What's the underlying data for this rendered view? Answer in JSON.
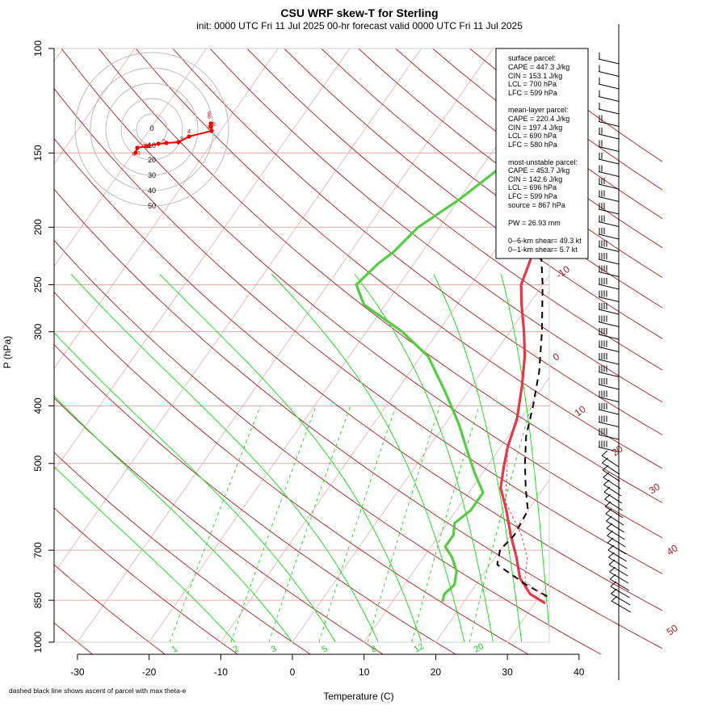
{
  "chart_data": {
    "type": "line",
    "title": "CSU WRF skew-T for Sterling",
    "subtitle": "init: 0000 UTC Fri 11 Jul 2025    00-hr forecast valid 0000 UTC Fri 11 Jul 2025",
    "xlabel": "Temperature (C)",
    "ylabel": "P (hPa)",
    "footnote": "dashed black line shows ascent of parcel with max theta-e",
    "x_ticks": [
      -30,
      -20,
      -10,
      0,
      10,
      20,
      30,
      40
    ],
    "y_ticks": [
      100,
      150,
      200,
      250,
      300,
      400,
      500,
      700,
      850,
      1000
    ],
    "xlim": [
      -33,
      45
    ],
    "ylim": [
      1000,
      100
    ],
    "skew_per_log10p": 58,
    "y_log": true,
    "dry_adiabat_labels": [
      -10,
      0,
      10,
      20,
      30,
      40,
      50
    ],
    "mixing_ratio_labels": [
      "1",
      "2",
      "3",
      "5",
      "8",
      "12",
      "20"
    ],
    "series": [
      {
        "name": "",
        "color": "#e03a4a",
        "points": [
          [
            31.5,
            860
          ],
          [
            28.5,
            830
          ],
          [
            25.5,
            780
          ],
          [
            23,
            720
          ],
          [
            20,
            660
          ],
          [
            17,
            600
          ],
          [
            14,
            550
          ],
          [
            12.5,
            510
          ],
          [
            11,
            470
          ],
          [
            9.5,
            420
          ],
          [
            7,
            370
          ],
          [
            4.5,
            330
          ],
          [
            2,
            300
          ],
          [
            -1,
            270
          ],
          [
            -3,
            250
          ],
          [
            -4.5,
            220
          ],
          [
            -4.5,
            200
          ],
          [
            -3.5,
            180
          ],
          [
            -2,
            160
          ],
          [
            0,
            150
          ],
          [
            1,
            140
          ],
          [
            2,
            130
          ],
          [
            3,
            120
          ],
          [
            5,
            110
          ],
          [
            5.5,
            105
          ]
        ]
      },
      {
        "name": "",
        "color": "#55cc44",
        "points": [
          [
            17,
            855
          ],
          [
            16.5,
            830
          ],
          [
            17,
            800
          ],
          [
            16,
            760
          ],
          [
            14,
            720
          ],
          [
            12,
            690
          ],
          [
            12,
            660
          ],
          [
            11,
            630
          ],
          [
            12,
            600
          ],
          [
            12,
            560
          ],
          [
            9,
            520
          ],
          [
            6,
            480
          ],
          [
            2,
            430
          ],
          [
            -3,
            380
          ],
          [
            -9,
            330
          ],
          [
            -15,
            300
          ],
          [
            -23,
            270
          ],
          [
            -26,
            250
          ],
          [
            -25,
            230
          ],
          [
            -24,
            220
          ],
          [
            -23,
            200
          ],
          [
            -20,
            180
          ],
          [
            -17.5,
            160
          ],
          [
            -16,
            150
          ],
          [
            -15,
            130
          ],
          [
            -14,
            110
          ],
          [
            -12.5,
            105
          ]
        ]
      },
      {
        "name": "",
        "color": "#000000",
        "dashed": true,
        "points": [
          [
            33,
            855
          ],
          [
            27,
            800
          ],
          [
            21,
            740
          ],
          [
            20,
            700
          ],
          [
            20.5,
            660
          ],
          [
            20,
            600
          ],
          [
            17.5,
            550
          ],
          [
            15,
            500
          ],
          [
            12.5,
            450
          ],
          [
            10.5,
            400
          ],
          [
            8,
            350
          ],
          [
            4.5,
            300
          ],
          [
            0,
            250
          ],
          [
            -6,
            200
          ],
          [
            -13,
            160
          ]
        ]
      }
    ]
  },
  "stats_box": {
    "surface_header": "surface parcel:",
    "surface_cape": "CAPE = 447.3 J/kg",
    "surface_cin": "CIN = 153.1  J/kg",
    "surface_lcl": "LCL = 700 hPa",
    "surface_lfc": "LFC = 599 hPa",
    "mean_header": "mean-layer parcel:",
    "mean_cape": "CAPE = 220.4 J/kg",
    "mean_cin": "CIN = 197.4 J/kg",
    "mean_lcl": "LCL = 690 hPa",
    "mean_lfc": "LFC = 580 hPa",
    "mu_header": "most-unstable parcel:",
    "mu_cape": "CAPE = 453.7 J/kg",
    "mu_cin": "CIN = 142.6 J/kg",
    "mu_lcl": "LCL = 696 hPa",
    "mu_lfc": "LFC = 599 hPa",
    "mu_source": "source = 867 hPa",
    "pw": "PW =  26.93 mm",
    "shear6": "0--6-km shear= 49.3 kt",
    "shear1": "0--1-km shear= 5.7 kt"
  },
  "hodograph": {
    "ring_labels": [
      "0",
      "10",
      "20",
      "30",
      "40",
      "50"
    ],
    "point_labels": [
      "0",
      "1",
      "2",
      "3",
      "4",
      "5",
      "6",
      "7",
      "8",
      "9",
      "10"
    ]
  },
  "colors": {
    "temperature": "#e03a4a",
    "dewpoint": "#55cc44",
    "isotherm": "#e8aaaa",
    "dry_adiabat": "#a52020",
    "moist_adiabat": "#22dd22",
    "mixing_ratio": "#22cc22",
    "parcel": "#000000",
    "hodograph": "#ee0000"
  }
}
